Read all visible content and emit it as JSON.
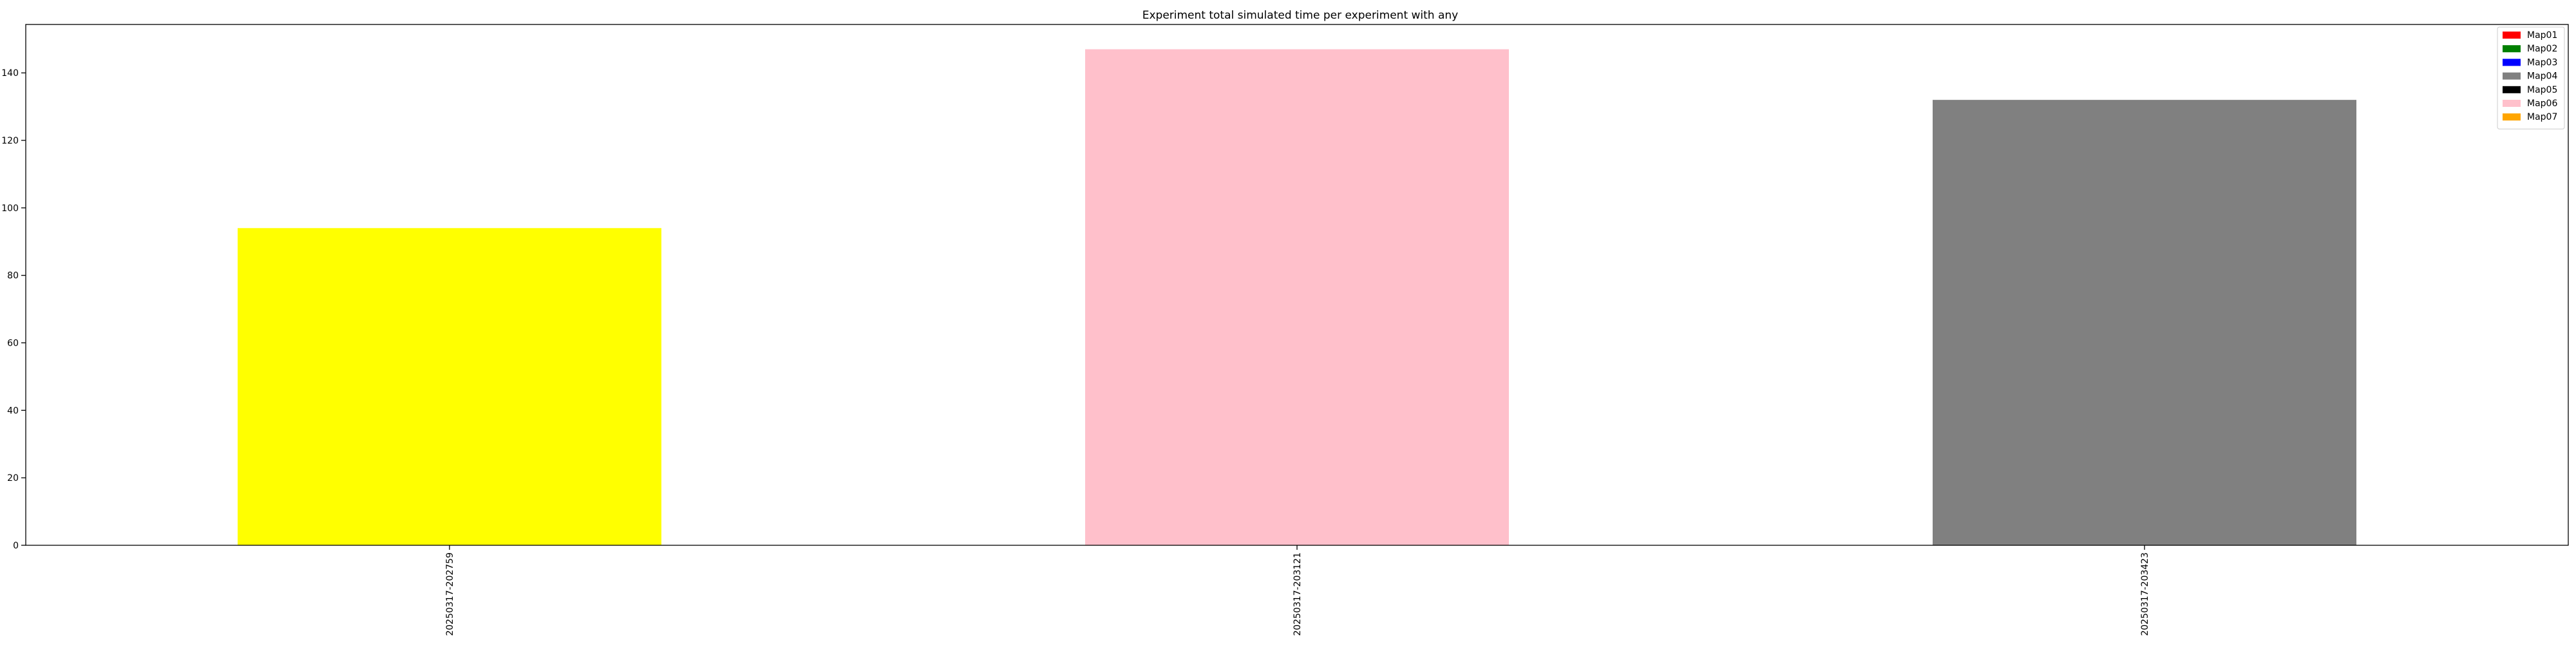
{
  "chart_data": {
    "type": "bar",
    "title": "Experiment total simulated time per experiment with any",
    "xlabel": "",
    "ylabel": "",
    "categories": [
      "20250317-202759",
      "20250317-203121",
      "20250317-203423"
    ],
    "values": [
      94,
      147,
      132
    ],
    "bar_colors": [
      "#ffff00",
      "#ffc0cb",
      "#808080"
    ],
    "ylim": [
      0,
      154.35
    ],
    "yticks": [
      0,
      20,
      40,
      60,
      80,
      100,
      120,
      140
    ],
    "grid": false,
    "legend": {
      "placement": "top-right",
      "entries": [
        {
          "label": "Map01",
          "color": "#ff0000"
        },
        {
          "label": "Map02",
          "color": "#008000"
        },
        {
          "label": "Map03",
          "color": "#0000ff"
        },
        {
          "label": "Map04",
          "color": "#808080"
        },
        {
          "label": "Map05",
          "color": "#000000"
        },
        {
          "label": "Map06",
          "color": "#ffc0cb"
        },
        {
          "label": "Map07",
          "color": "#ffa500"
        }
      ]
    }
  }
}
